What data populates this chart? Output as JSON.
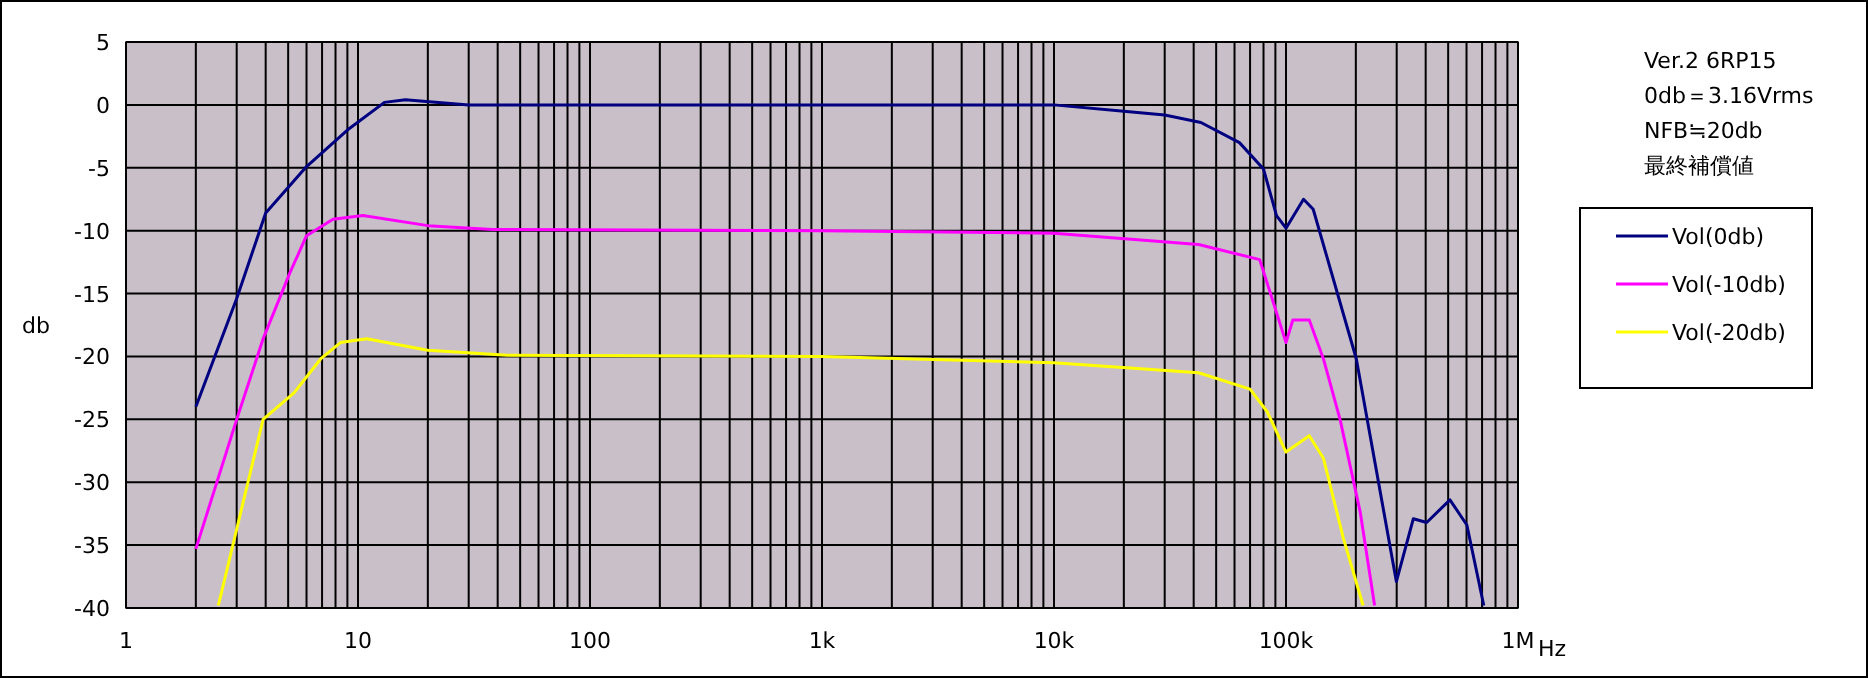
{
  "chart_data": {
    "type": "line",
    "xlabel": "Hz",
    "ylabel": "db",
    "log": "x",
    "grid": true,
    "legend": "right",
    "xlim": [
      1,
      1000000
    ],
    "ylim": [
      -40,
      5
    ],
    "xticks": [
      1,
      10,
      100,
      {
        "value": 1000,
        "label": "1k"
      },
      {
        "value": 10000,
        "label": "10k"
      },
      {
        "value": 100000,
        "label": "100k"
      },
      {
        "value": 1000000,
        "label": "1M"
      }
    ],
    "yticks": [
      -40,
      -35,
      -30,
      -25,
      -20,
      -15,
      -10,
      -5,
      0,
      5
    ],
    "annotations": [
      "Ver.2  6RP15",
      "0db＝3.16Vrms",
      "NFB≒20db",
      "最終補償値"
    ],
    "series": [
      {
        "name": "Vol(0db)",
        "color": "#000080",
        "x": [
          2,
          3,
          4,
          6,
          9,
          13,
          16,
          30,
          100,
          1000,
          10000,
          20000,
          30000,
          43000,
          63000,
          80000,
          91000,
          100000,
          119000,
          131000,
          201000,
          299000,
          354000,
          404000,
          509000,
          602000,
          712000
        ],
        "values": [
          -24,
          -15.4,
          -8.6,
          -4.9,
          -2,
          0.2,
          0.4,
          0,
          0,
          0,
          0,
          -0.5,
          -0.8,
          -1.4,
          -3,
          -5.1,
          -8.8,
          -9.8,
          -7.5,
          -8.3,
          -20.2,
          -37.9,
          -32.9,
          -33.2,
          -31.4,
          -33.4,
          -39.8
        ]
      },
      {
        "name": "Vol(-10db)",
        "color": "#ff00ff",
        "x": [
          2,
          3,
          3.9,
          5.1,
          6,
          7.8,
          10.5,
          20,
          38,
          1000,
          10000,
          42000,
          77000,
          91000,
          100000,
          107000,
          126000,
          145000,
          171000,
          209000,
          241000
        ],
        "values": [
          -35.3,
          -25,
          -18.6,
          -13.3,
          -10.4,
          -9.1,
          -8.8,
          -9.6,
          -9.9,
          -10,
          -10.2,
          -11.1,
          -12.3,
          -16.5,
          -18.9,
          -17.1,
          -17.1,
          -20.2,
          -25,
          -32.4,
          -39.8
        ]
      },
      {
        "name": "Vol(-20db)",
        "color": "#ffff00",
        "x": [
          2.5,
          3.9,
          5.3,
          6.9,
          8.4,
          10.9,
          20,
          44,
          1000,
          10000,
          42000,
          70000,
          83000,
          100000,
          126000,
          145000,
          177000,
          215000
        ],
        "values": [
          -39.8,
          -25,
          -22.9,
          -20.2,
          -18.9,
          -18.6,
          -19.5,
          -19.9,
          -20,
          -20.5,
          -21.3,
          -22.6,
          -24.4,
          -27.6,
          -26.3,
          -28.1,
          -34.5,
          -39.8
        ]
      }
    ]
  }
}
